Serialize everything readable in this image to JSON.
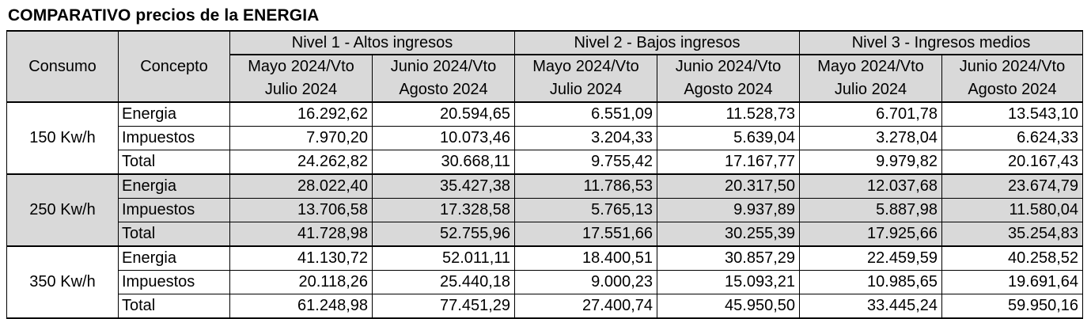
{
  "title": "COMPARATIVO precios de la ENERGIA",
  "headers": {
    "consumo": "Consumo",
    "concepto": "Concepto",
    "levels": [
      "Nivel 1 - Altos ingresos",
      "Nivel 2 - Bajos ingresos",
      "Nivel 3 - Ingresos medios"
    ],
    "period_a_line1": "Mayo 2024/Vto",
    "period_a_line2": "Julio 2024",
    "period_b_line1": "Junio 2024/Vto",
    "period_b_line2": "Agosto 2024"
  },
  "groups": [
    {
      "consumo": "150 Kw/h",
      "rows": [
        {
          "concepto": "Energia",
          "values": [
            "16.292,62",
            "20.594,65",
            "6.551,09",
            "11.528,73",
            "6.701,78",
            "13.543,10"
          ]
        },
        {
          "concepto": "Impuestos",
          "values": [
            "7.970,20",
            "10.073,46",
            "3.204,33",
            "5.639,04",
            "3.278,04",
            "6.624,33"
          ]
        },
        {
          "concepto": "Total",
          "values": [
            "24.262,82",
            "30.668,11",
            "9.755,42",
            "17.167,77",
            "9.979,82",
            "20.167,43"
          ]
        }
      ]
    },
    {
      "consumo": "250 Kw/h",
      "rows": [
        {
          "concepto": "Energia",
          "values": [
            "28.022,40",
            "35.427,38",
            "11.786,53",
            "20.317,50",
            "12.037,68",
            "23.674,79"
          ]
        },
        {
          "concepto": "Impuestos",
          "values": [
            "13.706,58",
            "17.328,58",
            "5.765,13",
            "9.937,89",
            "5.887,98",
            "11.580,04"
          ]
        },
        {
          "concepto": "Total",
          "values": [
            "41.728,98",
            "52.755,96",
            "17.551,66",
            "30.255,39",
            "17.925,66",
            "35.254,83"
          ]
        }
      ]
    },
    {
      "consumo": "350 Kw/h",
      "rows": [
        {
          "concepto": "Energia",
          "values": [
            "41.130,72",
            "52.011,11",
            "18.400,51",
            "30.857,29",
            "22.459,59",
            "40.258,52"
          ]
        },
        {
          "concepto": "Impuestos",
          "values": [
            "20.118,26",
            "25.440,18",
            "9.000,23",
            "15.093,21",
            "10.985,65",
            "19.691,64"
          ]
        },
        {
          "concepto": "Total",
          "values": [
            "61.248,98",
            "77.451,29",
            "27.400,74",
            "45.950,50",
            "33.445,24",
            "59.950,16"
          ]
        }
      ]
    }
  ],
  "colors": {
    "header_fill": "#d9d9d9",
    "middle_group_fill": "#d9d9d9",
    "border": "#000000"
  }
}
